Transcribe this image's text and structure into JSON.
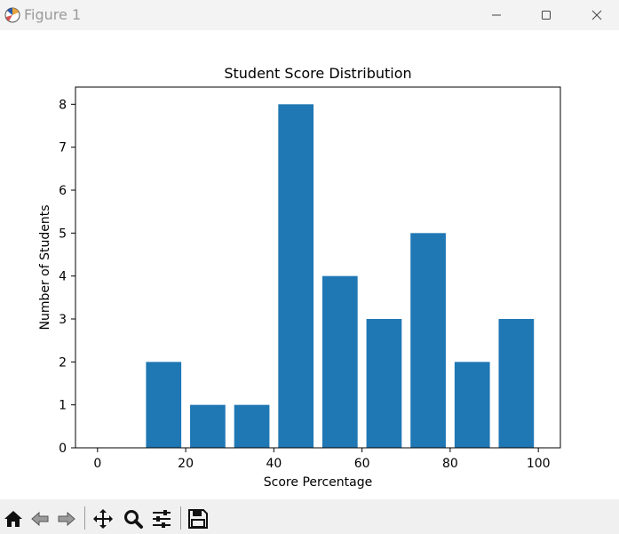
{
  "window": {
    "title": "Figure 1",
    "icon": "matplotlib-icon",
    "controls": [
      "minimize-icon",
      "maximize-icon",
      "close-icon"
    ]
  },
  "toolbar": {
    "buttons": [
      "home-icon",
      "back-icon",
      "forward-icon",
      "pan-icon",
      "zoom-icon",
      "configure-subplots-icon",
      "save-icon"
    ]
  },
  "chart_data": {
    "type": "bar",
    "title": "Student Score Distribution",
    "xlabel": "Score Percentage",
    "ylabel": "Number of Students",
    "bin_centers": [
      5,
      15,
      25,
      35,
      45,
      55,
      65,
      75,
      85,
      95
    ],
    "bar_width": 8,
    "values": [
      0,
      2,
      1,
      1,
      8,
      4,
      3,
      5,
      2,
      3
    ],
    "xlim": [
      -5,
      105
    ],
    "ylim": [
      0,
      8.4
    ],
    "xticks": [
      0,
      20,
      40,
      60,
      80,
      100
    ],
    "yticks": [
      0,
      1,
      2,
      3,
      4,
      5,
      6,
      7,
      8
    ],
    "bar_color": "#1f77b4",
    "grid": false
  }
}
